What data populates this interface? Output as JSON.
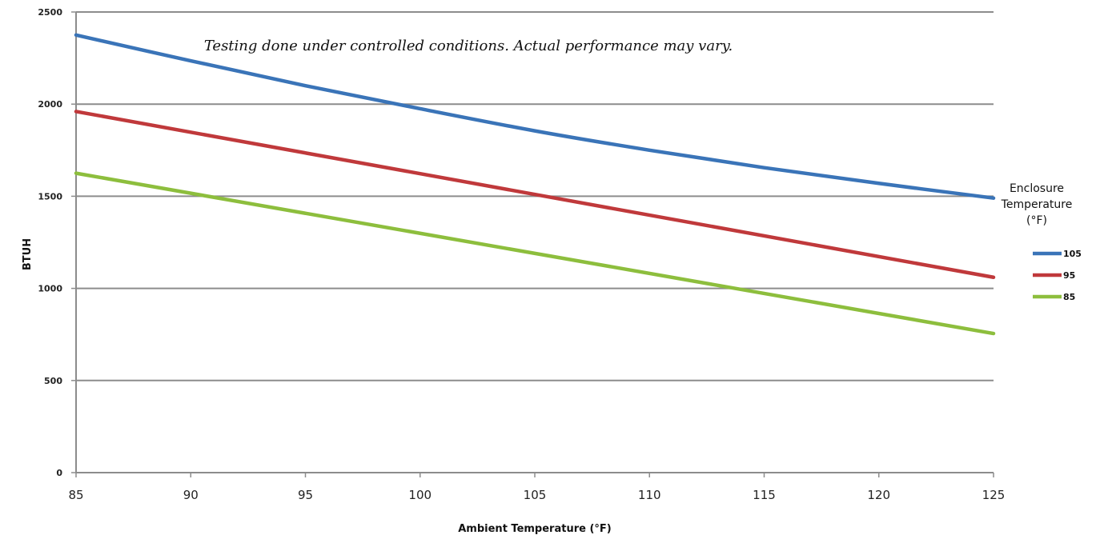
{
  "chart_data": {
    "type": "line",
    "title": "",
    "annotation": "Testing done under controlled conditions. Actual performance may vary.",
    "xlabel": "Ambient Temperature (°F)",
    "ylabel": "BTUH",
    "x": [
      85,
      125
    ],
    "xlim": [
      85,
      125
    ],
    "ylim": [
      0,
      2500
    ],
    "x_ticks": [
      "85",
      "90",
      "95",
      "100",
      "105",
      "110",
      "115",
      "120",
      "125"
    ],
    "y_ticks": [
      "0",
      "500",
      "1000",
      "1500",
      "2000",
      "2500"
    ],
    "grid": "horizontal",
    "legend_title_lines": [
      "Enclosure",
      "Temperature",
      "(°F)"
    ],
    "legend_position": "right",
    "series": [
      {
        "name": "105",
        "color": "#3a74b8",
        "x": [
          85,
          90,
          95,
          100,
          105,
          110,
          115,
          120,
          125
        ],
        "values": [
          2375,
          2235,
          2100,
          1975,
          1855,
          1750,
          1655,
          1570,
          1490
        ]
      },
      {
        "name": "95",
        "color": "#c0393b",
        "x": [
          85,
          125
        ],
        "values": [
          1960,
          1060
        ]
      },
      {
        "name": "85",
        "color": "#8dbe3d",
        "x": [
          85,
          125
        ],
        "values": [
          1625,
          755
        ]
      }
    ]
  }
}
